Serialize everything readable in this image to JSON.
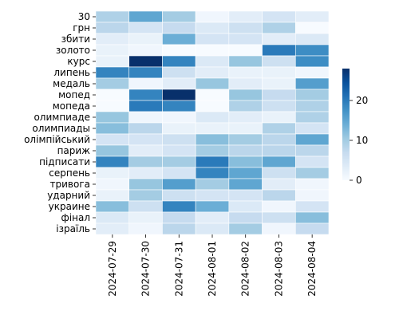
{
  "chart_data": {
    "type": "heatmap",
    "title": "",
    "xlabel": "",
    "ylabel": "",
    "x_categories": [
      "2024-07-29",
      "2024-07-30",
      "2024-07-31",
      "2024-08-01",
      "2024-08-02",
      "2024-08-03",
      "2024-08-04"
    ],
    "y_categories": [
      "30",
      "грн",
      "збити",
      "золото",
      "курс",
      "липень",
      "медаль",
      "мопед",
      "мопеда",
      "олимпиаде",
      "олимпиады",
      "олімпійський",
      "париж",
      "підписати",
      "серпень",
      "тривога",
      "ударний",
      "украине",
      "фінал",
      "ізраїль"
    ],
    "values": [
      [
        9,
        15,
        10,
        1,
        3,
        5,
        3
      ],
      [
        8,
        5,
        7,
        4,
        6,
        9,
        0
      ],
      [
        3,
        2,
        14,
        5,
        5,
        3,
        4
      ],
      [
        2,
        1,
        0,
        0,
        0,
        20,
        18
      ],
      [
        2,
        28,
        19,
        4,
        11,
        6,
        18
      ],
      [
        19,
        19,
        6,
        3,
        2,
        2,
        1
      ],
      [
        10,
        1,
        3,
        11,
        3,
        2,
        16
      ],
      [
        0,
        19,
        28,
        0,
        11,
        7,
        10
      ],
      [
        0,
        20,
        19,
        0,
        9,
        6,
        9
      ],
      [
        11,
        1,
        1,
        4,
        3,
        2,
        9
      ],
      [
        12,
        8,
        2,
        2,
        2,
        9,
        5
      ],
      [
        5,
        5,
        6,
        12,
        10,
        8,
        15
      ],
      [
        11,
        3,
        5,
        10,
        8,
        8,
        8
      ],
      [
        19,
        10,
        10,
        20,
        12,
        15,
        5
      ],
      [
        2,
        3,
        5,
        19,
        15,
        6,
        10
      ],
      [
        1,
        11,
        16,
        10,
        15,
        3,
        1
      ],
      [
        2,
        10,
        6,
        5,
        5,
        8,
        1
      ],
      [
        12,
        6,
        19,
        14,
        4,
        1,
        5
      ],
      [
        4,
        2,
        7,
        3,
        7,
        6,
        12
      ],
      [
        3,
        1,
        8,
        4,
        10,
        1,
        7
      ]
    ],
    "zlim": [
      0,
      28
    ],
    "colormap": "Blues",
    "colorbar": {
      "ticks": [
        0,
        10,
        20
      ],
      "tick_labels": [
        "0",
        "10",
        "20"
      ],
      "placement": "right"
    },
    "cell_border_color": "#ffffff",
    "grid": false,
    "legend": "none"
  }
}
